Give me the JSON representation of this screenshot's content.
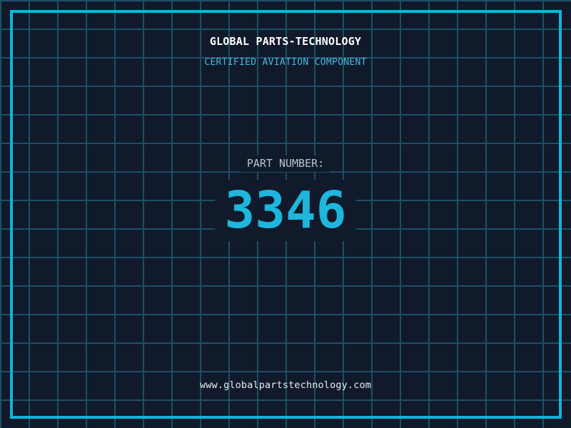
{
  "header": {
    "title": "GLOBAL PARTS-TECHNOLOGY",
    "subtitle": "CERTIFIED AVIATION COMPONENT"
  },
  "part": {
    "label": "PART NUMBER:",
    "number": "3346"
  },
  "footer": {
    "website": "www.globalpartstechnology.com"
  },
  "colors": {
    "background": "#101a2b",
    "grid-line": "#1d4f66",
    "frame": "#12b3da",
    "title-text": "#ffffff",
    "subtitle-text": "#46b8de",
    "label-text": "#b9c3cd",
    "number-text": "#1eb6dc",
    "url-text": "#e9eceb"
  }
}
